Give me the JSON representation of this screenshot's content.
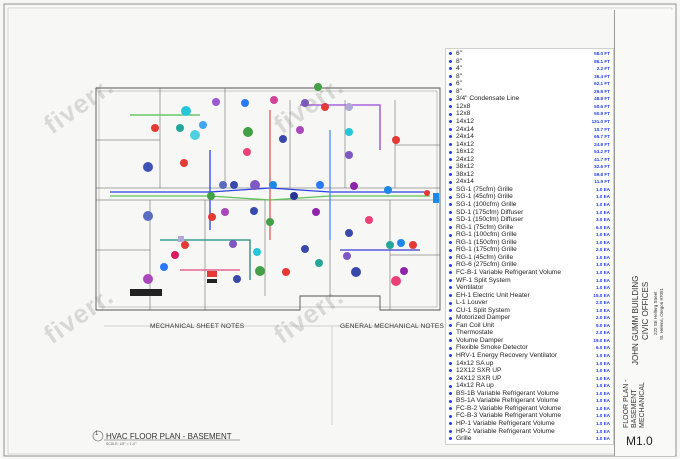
{
  "plan": {
    "title": "HVAC FLOOR PLAN - BASEMENT",
    "title_number": "1",
    "scale": "SCALE: 1/8\" = 1'-0\""
  },
  "notes": {
    "mechanical_title": "MECHANICAL SHEET NOTES",
    "general_title": "GENERAL MECHANICAL NOTES"
  },
  "takeoff": [
    {
      "label": "6\"",
      "qty": "58.0 FT",
      "color": "#1f3df0"
    },
    {
      "label": "8\"",
      "qty": "86.1 FT",
      "color": "#1f3df0"
    },
    {
      "label": "4\"",
      "qty": "2.2 FT",
      "color": "#1f3df0"
    },
    {
      "label": "8\"",
      "qty": "36.4 FT",
      "color": "#1f3df0"
    },
    {
      "label": "6\"",
      "qty": "62.1 FT",
      "color": "#1f3df0"
    },
    {
      "label": "8\"",
      "qty": "29.8 FT",
      "color": "#1f3df0"
    },
    {
      "label": "3/4\" Condensate Line",
      "qty": "48.8 FT",
      "color": "#1f3df0"
    },
    {
      "label": "12x8",
      "qty": "50.6 FT",
      "color": "#1f3df0"
    },
    {
      "label": "12x8",
      "qty": "50.9 FT",
      "color": "#1f3df0"
    },
    {
      "label": "14x12",
      "qty": "131.0 FT",
      "color": "#1f3df0"
    },
    {
      "label": "24x14",
      "qty": "10.7 FT",
      "color": "#1f3df0"
    },
    {
      "label": "24x14",
      "qty": "65.7 FT",
      "color": "#1f3df0"
    },
    {
      "label": "14x12",
      "qty": "24.9 FT",
      "color": "#1f3df0"
    },
    {
      "label": "16x12",
      "qty": "53.2 FT",
      "color": "#1f3df0"
    },
    {
      "label": "24x12",
      "qty": "41.7 FT",
      "color": "#1f3df0"
    },
    {
      "label": "38x12",
      "qty": "32.6 FT",
      "color": "#1f3df0"
    },
    {
      "label": "38x12",
      "qty": "59.8 FT",
      "color": "#1f3df0"
    },
    {
      "label": "24x14",
      "qty": "11.9 FT",
      "color": "#1f3df0"
    },
    {
      "label": "SG-1 (75cfm) Grille",
      "qty": "1.0 EA",
      "color": "#1f3df0"
    },
    {
      "label": "SG-1 (45cfm) Grille",
      "qty": "1.0 EA",
      "color": "#1f3df0"
    },
    {
      "label": "SG-1 (100cfm) Grille",
      "qty": "1.0 EA",
      "color": "#1f3df0"
    },
    {
      "label": "SD-1 (175cfm) Diffuser",
      "qty": "1.0 EA",
      "color": "#1f3df0"
    },
    {
      "label": "SD-1 (150cfm) Diffuser",
      "qty": "3.0 EA",
      "color": "#1f3df0"
    },
    {
      "label": "RG-1 (75cfm) Grille",
      "qty": "6.0 EA",
      "color": "#1f3df0"
    },
    {
      "label": "RG-1 (100cfm) Grille",
      "qty": "1.0 EA",
      "color": "#1f3df0"
    },
    {
      "label": "RG-1 (150cfm) Grille",
      "qty": "1.0 EA",
      "color": "#1f3df0"
    },
    {
      "label": "RG-1 (175cfm) Grille",
      "qty": "2.0 EA",
      "color": "#1f3df0"
    },
    {
      "label": "RG-1 (45cfm) Grille",
      "qty": "1.0 EA",
      "color": "#1f3df0"
    },
    {
      "label": "RG-6 (275cfm) Grille",
      "qty": "1.0 EA",
      "color": "#1f3df0"
    },
    {
      "label": "FC-B-1 Variable Refrigerant Volume",
      "qty": "1.0 EA",
      "color": "#1f3df0"
    },
    {
      "label": "WF-1 Split System",
      "qty": "1.0 EA",
      "color": "#1f3df0"
    },
    {
      "label": "Ventilator",
      "qty": "1.0 EA",
      "color": "#1f3df0"
    },
    {
      "label": "EH-1 Electric Unit Heater",
      "qty": "15.0 EA",
      "color": "#1f3df0"
    },
    {
      "label": "L-1 Louver",
      "qty": "2.0 EA",
      "color": "#1f3df0"
    },
    {
      "label": "CU-1 Split System",
      "qty": "1.0 EA",
      "color": "#1f3df0"
    },
    {
      "label": "Motorized Damper",
      "qty": "2.0 EA",
      "color": "#1f3df0"
    },
    {
      "label": "Fan Coil Unit",
      "qty": "9.0 EA",
      "color": "#1f3df0"
    },
    {
      "label": "Thermostate",
      "qty": "2.0 EA",
      "color": "#1f3df0"
    },
    {
      "label": "Volume Damper",
      "qty": "19.0 EA",
      "color": "#1f3df0"
    },
    {
      "label": "Flexible Smoke Detector",
      "qty": "6.0 EA",
      "color": "#1f3df0"
    },
    {
      "label": "HRV-1 Energy Recovery Ventilator",
      "qty": "1.0 EA",
      "color": "#1f3df0"
    },
    {
      "label": "14x12 SA up",
      "qty": "1.0 EA",
      "color": "#1f3df0"
    },
    {
      "label": "12X12 SXR UP",
      "qty": "1.0 EA",
      "color": "#1f3df0"
    },
    {
      "label": "24X12 SXR UP",
      "qty": "1.0 EA",
      "color": "#1f3df0"
    },
    {
      "label": "14x12 RA up",
      "qty": "1.0 EA",
      "color": "#1f3df0"
    },
    {
      "label": "BS-1B Variable Refrigerant Volume",
      "qty": "1.0 EA",
      "color": "#1f3df0"
    },
    {
      "label": "BS-1A Variable Refrigerant Volume",
      "qty": "1.0 EA",
      "color": "#1f3df0"
    },
    {
      "label": "FC-B-2 Variable Refrigerant Volume",
      "qty": "1.0 EA",
      "color": "#1f3df0"
    },
    {
      "label": "FC-B-3 Variable Refrigerant Volume",
      "qty": "1.0 EA",
      "color": "#1f3df0"
    },
    {
      "label": "HP-1 Variable Refrigerant Volume",
      "qty": "1.0 EA",
      "color": "#1f3df0"
    },
    {
      "label": "HP-2 Variable Refrigerant Volume",
      "qty": "1.0 EA",
      "color": "#1f3df0"
    },
    {
      "label": "Grille",
      "qty": "1.0 EA",
      "color": "#1f3df0"
    }
  ],
  "titleblock": {
    "project_line1": "JOHN GUMM BUILDING",
    "project_line2": "CIVIC OFFICES",
    "address_line1": "222 SE Hellerg Street",
    "address_line2": "St. Helens, Oregon 97051",
    "sheet_title_line1": "FLOOR PLAN -",
    "sheet_title_line2": "BASEMENT",
    "sheet_title_line3": "MECHANICAL",
    "sheet_number": "M1.0"
  },
  "watermark": "fiverr."
}
